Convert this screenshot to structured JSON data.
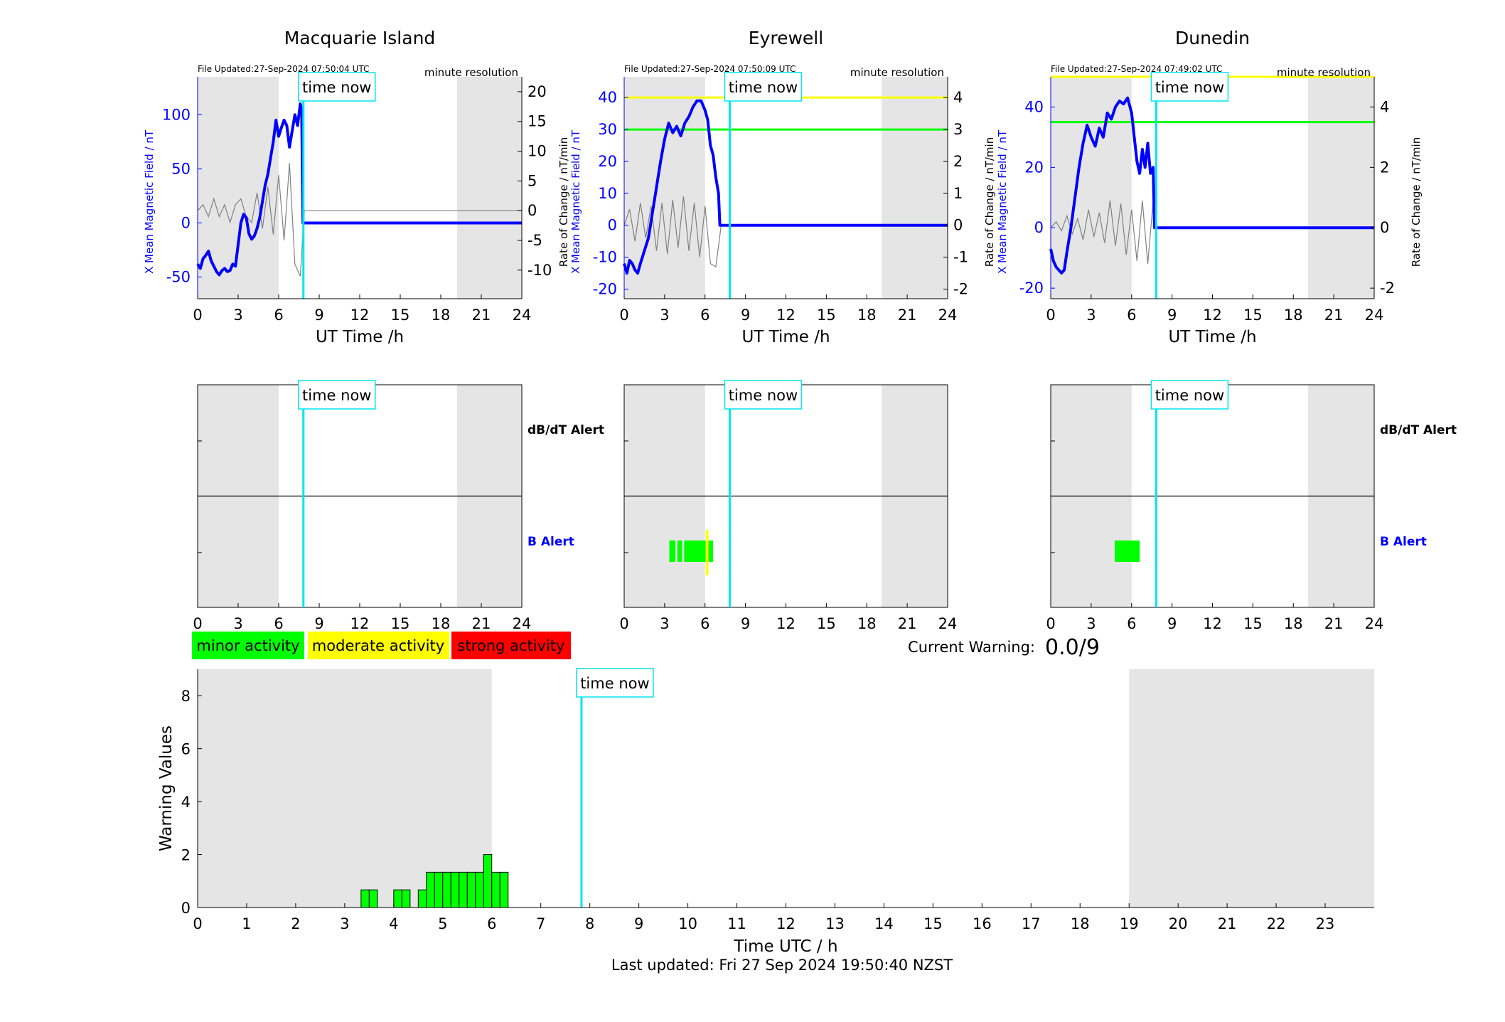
{
  "colors": {
    "x_field": "#0000ff",
    "rate": "#808080",
    "time_now": "#00e5ee",
    "night_shade": "#e5e5e5",
    "minor": "#00ff00",
    "moderate": "#ffff00",
    "strong": "#ff0000",
    "threshold_yellow": "#ffff00",
    "threshold_green": "#00ff00"
  },
  "stations": [
    {
      "name": "Macquarie Island",
      "file_updated": "File Updated:27-Sep-2024 07:50:04 UTC",
      "resolution": "minute resolution",
      "time_now_label": "time now",
      "time_now_hour": 7.83,
      "night_bands": [
        [
          0,
          6
        ],
        [
          19.2,
          24
        ]
      ],
      "left_ylabel": "X Mean Magnetic Field / nT",
      "right_ylabel": "Rate of Change / nT/min",
      "xlabel": "UT Time /h",
      "xticks": [
        "0",
        "3",
        "6",
        "9",
        "12",
        "15",
        "18",
        "21",
        "24"
      ],
      "left_ticks": [
        "-50",
        "0",
        "50",
        "100"
      ],
      "right_ticks": [
        "-10",
        "-5",
        "0",
        "5",
        "10",
        "15",
        "20"
      ],
      "thresholds": [],
      "alerts_ylabel_top": "dB/dT Alert",
      "alerts_ylabel_bottom": "B Alert",
      "b_alerts": [],
      "db_alerts": []
    },
    {
      "name": "Eyrewell",
      "file_updated": "File Updated:27-Sep-2024 07:50:09 UTC",
      "resolution": "minute resolution",
      "time_now_label": "time now",
      "time_now_hour": 7.83,
      "night_bands": [
        [
          0,
          6
        ],
        [
          19.1,
          24
        ]
      ],
      "left_ylabel": "X Mean Magnetic Field / nT",
      "right_ylabel": "Rate of Change / nT/min",
      "xlabel": "UT Time /h",
      "xticks": [
        "0",
        "3",
        "6",
        "9",
        "12",
        "15",
        "18",
        "21",
        "24"
      ],
      "left_ticks": [
        "-20",
        "-10",
        "0",
        "10",
        "20",
        "30",
        "40"
      ],
      "right_ticks": [
        "-2",
        "-1",
        "0",
        "1",
        "2",
        "3",
        "4"
      ],
      "thresholds": [
        {
          "value": 40,
          "color": "#ffff00"
        },
        {
          "value": 30,
          "color": "#00ff00"
        }
      ],
      "alerts_ylabel_top": "",
      "alerts_ylabel_bottom": "",
      "b_alerts": [
        {
          "start": 3.35,
          "end": 3.8,
          "level": "minor"
        },
        {
          "start": 3.95,
          "end": 4.3,
          "level": "minor"
        },
        {
          "start": 4.45,
          "end": 6.05,
          "level": "minor"
        },
        {
          "start": 6.05,
          "end": 6.25,
          "level": "moderate"
        },
        {
          "start": 6.25,
          "end": 6.6,
          "level": "minor"
        }
      ],
      "db_alerts": []
    },
    {
      "name": "Dunedin",
      "file_updated": "File Updated:27-Sep-2024 07:49:02 UTC",
      "resolution": "minute resolution",
      "time_now_label": "time now",
      "time_now_hour": 7.83,
      "night_bands": [
        [
          0,
          6
        ],
        [
          19.1,
          24
        ]
      ],
      "left_ylabel": "X Mean Magnetic Field / nT",
      "right_ylabel": "Rate of Change / nT/min",
      "xlabel": "UT Time /h",
      "xticks": [
        "0",
        "3",
        "6",
        "9",
        "12",
        "15",
        "18",
        "21",
        "24"
      ],
      "left_ticks": [
        "-20",
        "0",
        "20",
        "40"
      ],
      "right_ticks": [
        "-2",
        "0",
        "2",
        "4"
      ],
      "thresholds": [
        {
          "value": 50,
          "color": "#ffff00"
        },
        {
          "value": 35,
          "color": "#00ff00"
        }
      ],
      "alerts_ylabel_top": "dB/dT Alert",
      "alerts_ylabel_bottom": "B Alert",
      "b_alerts": [
        {
          "start": 4.75,
          "end": 6.6,
          "level": "minor"
        }
      ],
      "db_alerts": []
    }
  ],
  "legend": {
    "minor": "minor activity",
    "moderate": "moderate activity",
    "strong": "strong activity"
  },
  "current_warning": {
    "label": "Current Warning:",
    "value": "0.0/9"
  },
  "footer": {
    "last_updated": "Last updated: Fri 27 Sep 2024 19:50:40 NZST"
  },
  "chart_data": [
    {
      "type": "line",
      "title": "Macquarie Island",
      "xlabel": "UT Time /h",
      "ylabel": "X Mean Magnetic Field / nT",
      "y2label": "Rate of Change / nT/min",
      "xlim": [
        0,
        24
      ],
      "ylim": [
        -70,
        135
      ],
      "y2lim": [
        -14.8,
        22.5
      ],
      "series": [
        {
          "values_role": "x_mean_field",
          "x": [
            0,
            0.2,
            0.4,
            0.6,
            0.8,
            1.0,
            1.2,
            1.4,
            1.6,
            1.8,
            2.0,
            2.2,
            2.4,
            2.6,
            2.8,
            3.0,
            3.2,
            3.4,
            3.6,
            3.8,
            4.0,
            4.2,
            4.4,
            4.6,
            4.8,
            5.0,
            5.2,
            5.4,
            5.6,
            5.8,
            6.0,
            6.2,
            6.4,
            6.6,
            6.8,
            7.0,
            7.2,
            7.4,
            7.6,
            7.7,
            7.8,
            7.9,
            24
          ],
          "y": [
            -38,
            -42,
            -33,
            -30,
            -26,
            -35,
            -40,
            -45,
            -48,
            -44,
            -42,
            -45,
            -44,
            -38,
            -40,
            -20,
            0,
            8,
            5,
            -10,
            -15,
            -12,
            -5,
            5,
            20,
            35,
            45,
            60,
            75,
            95,
            80,
            88,
            95,
            90,
            70,
            85,
            100,
            90,
            110,
            105,
            0,
            0,
            0
          ]
        },
        {
          "values_role": "rate_of_change",
          "x": [
            0,
            0.4,
            0.8,
            1.2,
            1.6,
            2.0,
            2.4,
            2.8,
            3.2,
            3.6,
            4.0,
            4.4,
            4.8,
            5.2,
            5.6,
            6.0,
            6.4,
            6.8,
            7.2,
            7.6,
            7.9,
            24
          ],
          "y": [
            0,
            1,
            -1,
            2,
            -1,
            1,
            -2,
            1,
            2,
            -1,
            -2,
            3,
            -3,
            4,
            -4,
            6,
            -5,
            8,
            -9,
            -11,
            0,
            0
          ]
        }
      ]
    },
    {
      "type": "line",
      "title": "Eyrewell",
      "xlabel": "UT Time /h",
      "ylabel": "X Mean Magnetic Field / nT",
      "y2label": "Rate of Change / nT/min",
      "xlim": [
        0,
        24
      ],
      "ylim": [
        -23,
        46.5
      ],
      "y2lim": [
        -2.3,
        4.65
      ],
      "series": [
        {
          "values_role": "x_mean_field",
          "x": [
            0,
            0.2,
            0.4,
            0.6,
            0.8,
            1.0,
            1.2,
            1.5,
            1.8,
            2.1,
            2.4,
            2.7,
            3.0,
            3.3,
            3.6,
            3.9,
            4.2,
            4.5,
            4.8,
            5.1,
            5.4,
            5.7,
            6.0,
            6.2,
            6.4,
            6.6,
            6.8,
            7.0,
            7.1,
            7.2,
            24
          ],
          "y": [
            -12,
            -15,
            -11,
            -12,
            -14,
            -15,
            -12,
            -8,
            -4,
            4,
            12,
            20,
            27,
            32,
            29,
            31,
            28,
            32,
            34,
            37,
            39,
            39,
            36,
            33,
            25,
            22,
            15,
            10,
            0,
            0,
            0
          ]
        },
        {
          "values_role": "rate_of_change",
          "x": [
            0,
            0.4,
            0.8,
            1.2,
            1.6,
            2.0,
            2.4,
            2.8,
            3.2,
            3.6,
            4.0,
            4.4,
            4.8,
            5.2,
            5.6,
            6.0,
            6.4,
            6.8,
            7.2,
            24
          ],
          "y": [
            0,
            0.5,
            -0.5,
            0.7,
            -0.4,
            0.6,
            -0.8,
            0.7,
            -0.9,
            0.8,
            -0.7,
            0.9,
            -0.8,
            0.7,
            -1.0,
            0.6,
            -1.2,
            -1.3,
            0,
            0
          ]
        }
      ]
    },
    {
      "type": "line",
      "title": "Dunedin",
      "xlabel": "UT Time /h",
      "ylabel": "X Mean Magnetic Field / nT",
      "y2label": "Rate of Change / nT/min",
      "xlim": [
        0,
        24
      ],
      "ylim": [
        -23.5,
        50
      ],
      "y2lim": [
        -2.35,
        5.0
      ],
      "series": [
        {
          "values_role": "x_mean_field",
          "x": [
            0,
            0.2,
            0.4,
            0.6,
            0.8,
            1.0,
            1.2,
            1.5,
            1.8,
            2.1,
            2.4,
            2.7,
            3.0,
            3.3,
            3.6,
            3.9,
            4.2,
            4.5,
            4.8,
            5.1,
            5.4,
            5.7,
            6.0,
            6.2,
            6.4,
            6.6,
            6.8,
            7.0,
            7.2,
            7.4,
            7.6,
            7.7,
            7.8,
            24
          ],
          "y": [
            -7,
            -11,
            -13,
            -14,
            -15,
            -14,
            -8,
            0,
            10,
            20,
            28,
            34,
            30,
            27,
            33,
            30,
            38,
            36,
            40,
            42,
            41,
            43,
            38,
            30,
            22,
            18,
            26,
            20,
            28,
            18,
            20,
            0,
            0,
            0
          ]
        },
        {
          "values_role": "rate_of_change",
          "x": [
            0,
            0.4,
            0.8,
            1.2,
            1.6,
            2.0,
            2.4,
            2.8,
            3.2,
            3.6,
            4.0,
            4.4,
            4.8,
            5.2,
            5.6,
            6.0,
            6.4,
            6.8,
            7.2,
            7.6,
            7.8,
            24
          ],
          "y": [
            0,
            0.2,
            -0.1,
            0.4,
            -0.2,
            0.3,
            -0.4,
            0.6,
            -0.3,
            0.5,
            -0.5,
            0.9,
            -0.6,
            0.8,
            -0.9,
            0.6,
            -1.1,
            0.9,
            -1.2,
            0.9,
            0,
            0
          ]
        }
      ]
    },
    {
      "type": "bar",
      "title": "",
      "xlabel": "Time UTC / h",
      "ylabel": "Warning Values",
      "xlim": [
        0,
        24
      ],
      "ylim": [
        0,
        9
      ],
      "yticks": [
        "0",
        "2",
        "4",
        "6",
        "8"
      ],
      "xticks": [
        "0",
        "1",
        "2",
        "3",
        "4",
        "5",
        "6",
        "7",
        "8",
        "9",
        "10",
        "11",
        "12",
        "13",
        "14",
        "15",
        "16",
        "17",
        "18",
        "19",
        "20",
        "21",
        "22",
        "23"
      ],
      "night_bands": [
        [
          0,
          6
        ],
        [
          19,
          24
        ]
      ],
      "time_now_hour": 7.83,
      "time_now_label": "time now",
      "bar_width_h": 0.1667,
      "bars": [
        {
          "x": 3.333,
          "value": 0.667
        },
        {
          "x": 3.5,
          "value": 0.667
        },
        {
          "x": 4.0,
          "value": 0.667
        },
        {
          "x": 4.167,
          "value": 0.667
        },
        {
          "x": 4.5,
          "value": 0.667
        },
        {
          "x": 4.667,
          "value": 1.333
        },
        {
          "x": 4.833,
          "value": 1.333
        },
        {
          "x": 5.0,
          "value": 1.333
        },
        {
          "x": 5.167,
          "value": 1.333
        },
        {
          "x": 5.333,
          "value": 1.333
        },
        {
          "x": 5.5,
          "value": 1.333
        },
        {
          "x": 5.667,
          "value": 1.333
        },
        {
          "x": 5.833,
          "value": 2.0
        },
        {
          "x": 6.0,
          "value": 1.333
        },
        {
          "x": 6.167,
          "value": 1.333
        }
      ]
    }
  ]
}
